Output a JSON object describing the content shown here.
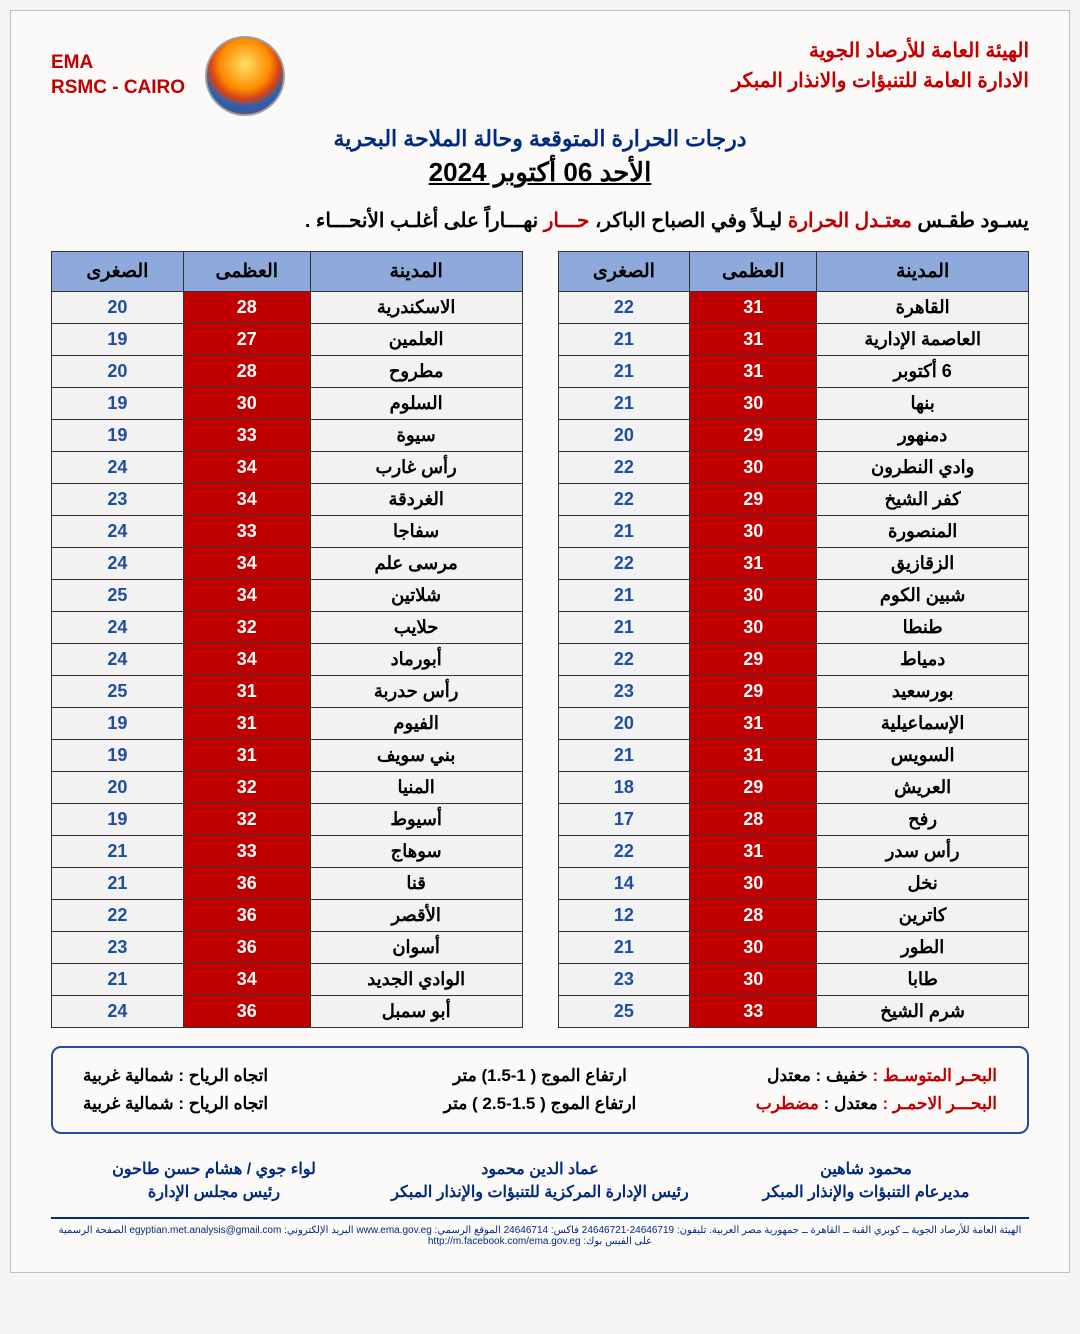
{
  "header": {
    "org_line1": "الهيئة العامة للأرصاد الجوية",
    "org_line2": "الادارة العامة للتنبؤات والانذار المبكر",
    "left_line1": "EMA",
    "left_line2": "RSMC - CAIRO"
  },
  "title": {
    "line1": "درجات الحرارة المتوقعة وحالة الملاحة البحرية",
    "line2": "الأحد 06 أكتوبر 2024"
  },
  "summary": {
    "p1": "يسـود طقـس",
    "p2": " معتـدل الحرارة ",
    "p3": "ليـلاً وفي الصباح الباكر، ",
    "p4": " حـــار ",
    "p5": "نهـــاراً على أغلـب الأنحـــاء ."
  },
  "table_headers": {
    "city": "المدينة",
    "max": "العظمى",
    "min": "الصغرى"
  },
  "table_right": [
    {
      "city": "القاهرة",
      "max": "31",
      "min": "22"
    },
    {
      "city": "العاصمة الإدارية",
      "max": "31",
      "min": "21"
    },
    {
      "city": "6 أكتوبر",
      "max": "31",
      "min": "21"
    },
    {
      "city": "بنها",
      "max": "30",
      "min": "21"
    },
    {
      "city": "دمنهور",
      "max": "29",
      "min": "20"
    },
    {
      "city": "وادي النطرون",
      "max": "30",
      "min": "22"
    },
    {
      "city": "كفر الشيخ",
      "max": "29",
      "min": "22"
    },
    {
      "city": "المنصورة",
      "max": "30",
      "min": "21"
    },
    {
      "city": "الزقازيق",
      "max": "31",
      "min": "22"
    },
    {
      "city": "شبين الكوم",
      "max": "30",
      "min": "21"
    },
    {
      "city": "طنطا",
      "max": "30",
      "min": "21"
    },
    {
      "city": "دمياط",
      "max": "29",
      "min": "22"
    },
    {
      "city": "بورسعيد",
      "max": "29",
      "min": "23"
    },
    {
      "city": "الإسماعيلية",
      "max": "31",
      "min": "20"
    },
    {
      "city": "السويس",
      "max": "31",
      "min": "21"
    },
    {
      "city": "العريش",
      "max": "29",
      "min": "18"
    },
    {
      "city": "رفح",
      "max": "28",
      "min": "17"
    },
    {
      "city": "رأس سدر",
      "max": "31",
      "min": "22"
    },
    {
      "city": "نخل",
      "max": "30",
      "min": "14"
    },
    {
      "city": "كاترين",
      "max": "28",
      "min": "12"
    },
    {
      "city": "الطور",
      "max": "30",
      "min": "21"
    },
    {
      "city": "طابا",
      "max": "30",
      "min": "23"
    },
    {
      "city": "شرم الشيخ",
      "max": "33",
      "min": "25"
    }
  ],
  "table_left": [
    {
      "city": "الاسكندرية",
      "max": "28",
      "min": "20"
    },
    {
      "city": "العلمين",
      "max": "27",
      "min": "19"
    },
    {
      "city": "مطروح",
      "max": "28",
      "min": "20"
    },
    {
      "city": "السلوم",
      "max": "30",
      "min": "19"
    },
    {
      "city": "سيوة",
      "max": "33",
      "min": "19"
    },
    {
      "city": "رأس غارب",
      "max": "34",
      "min": "24"
    },
    {
      "city": "الغردقة",
      "max": "34",
      "min": "23"
    },
    {
      "city": "سفاجا",
      "max": "33",
      "min": "24"
    },
    {
      "city": "مرسى علم",
      "max": "34",
      "min": "24"
    },
    {
      "city": "شلاتين",
      "max": "34",
      "min": "25"
    },
    {
      "city": "حلايب",
      "max": "32",
      "min": "24"
    },
    {
      "city": "أبورماد",
      "max": "34",
      "min": "24"
    },
    {
      "city": "رأس حدربة",
      "max": "31",
      "min": "25"
    },
    {
      "city": "الفيوم",
      "max": "31",
      "min": "19"
    },
    {
      "city": "بني سويف",
      "max": "31",
      "min": "19"
    },
    {
      "city": "المنيا",
      "max": "32",
      "min": "20"
    },
    {
      "city": "أسيوط",
      "max": "32",
      "min": "19"
    },
    {
      "city": "سوهاج",
      "max": "33",
      "min": "21"
    },
    {
      "city": "قنا",
      "max": "36",
      "min": "21"
    },
    {
      "city": "الأقصر",
      "max": "36",
      "min": "22"
    },
    {
      "city": "أسوان",
      "max": "36",
      "min": "23"
    },
    {
      "city": "الوادي الجديد",
      "max": "34",
      "min": "21"
    },
    {
      "city": "أبو سمبل",
      "max": "36",
      "min": "24"
    }
  ],
  "sea": {
    "med": {
      "label": "البحـر المتوسـط :",
      "state": " خفيف : معتدل",
      "wave": "ارتفاع الموج ( 1-1.5) متر",
      "wind": "اتجاه الرياح : شمالية غربية"
    },
    "red": {
      "label": "البحـــر الاحمـر :",
      "state_pre": " معتدل : ",
      "state_hot": "مضطرب",
      "wave": "ارتفاع الموج ( 1.5-2.5 ) متر",
      "wind": "اتجاه الرياح : شمالية غربية"
    }
  },
  "signatures": {
    "right": {
      "name": "محمود شاهين",
      "title": "مديرعام التنبؤات والإنذار المبكر"
    },
    "center": {
      "name": "عماد الدين محمود",
      "title": "رئيس الإدارة المركزية للتنبؤات والإنذار المبكر"
    },
    "left": {
      "name": "لواء جوي / هشام حسن طاحون",
      "title": "رئيس مجلس الإدارة"
    }
  },
  "footer": "الهيئة العامة للأرصاد الجوية ــ كوبري القبة ــ القاهرة ــ جمهورية مصر العربية. تليفون: 24646719-24646721 فاكس: 24646714 الموقع الرسمي: www.ema.gov.eg البريد الإلكتروني: egyptian.met.analysis@gmail.com الصفحة الرسمية على الفيس بوك: http://m.facebook.com/ema.gov.eg"
}
